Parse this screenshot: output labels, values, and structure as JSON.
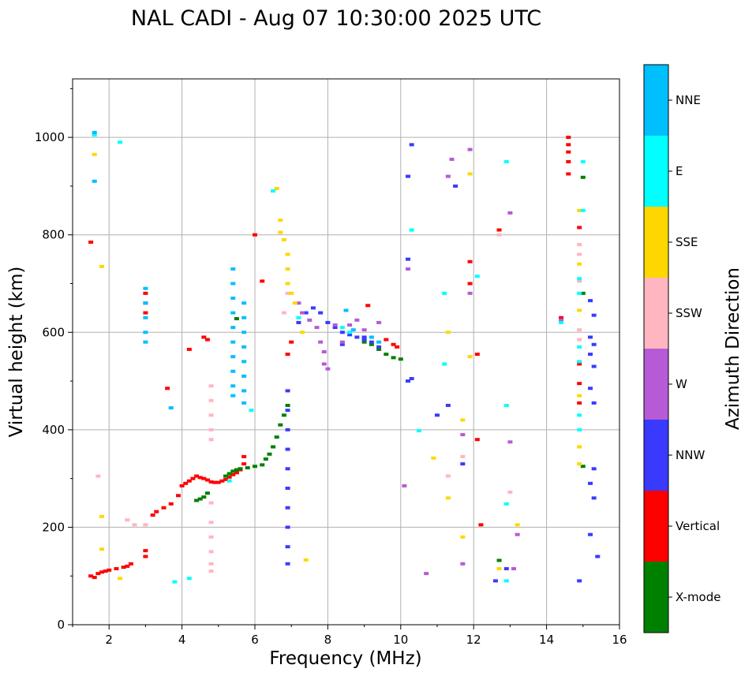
{
  "chart_data": {
    "type": "scatter",
    "title": "NAL CADI - Aug 07 10:30:00 2025 UTC",
    "xlabel": "Frequency (MHz)",
    "ylabel": "Virtual height (km)",
    "xlim": [
      1,
      16
    ],
    "ylim": [
      0,
      1120
    ],
    "xticks": [
      2,
      4,
      6,
      8,
      10,
      12,
      14,
      16
    ],
    "yticks": [
      0,
      200,
      400,
      600,
      800,
      1000
    ],
    "grid": true,
    "colorbar": {
      "label": "Azimuth Direction",
      "categories": [
        {
          "name": "X-mode",
          "color": "#008000"
        },
        {
          "name": "Vertical",
          "color": "#ff0000"
        },
        {
          "name": "NNW",
          "color": "#3a3aff"
        },
        {
          "name": "W",
          "color": "#b65ad6"
        },
        {
          "name": "SSW",
          "color": "#ffb6c1"
        },
        {
          "name": "SSE",
          "color": "#ffd700"
        },
        {
          "name": "E",
          "color": "#00ffff"
        },
        {
          "name": "NNE",
          "color": "#00bfff"
        }
      ]
    },
    "series": [
      {
        "name": "Vertical",
        "points": [
          [
            1.5,
            100
          ],
          [
            1.6,
            97
          ],
          [
            1.7,
            105
          ],
          [
            1.8,
            108
          ],
          [
            1.9,
            110
          ],
          [
            2.0,
            112
          ],
          [
            2.2,
            115
          ],
          [
            2.4,
            118
          ],
          [
            2.5,
            120
          ],
          [
            2.6,
            125
          ],
          [
            3.0,
            140
          ],
          [
            3.0,
            152
          ],
          [
            3.2,
            225
          ],
          [
            3.3,
            232
          ],
          [
            3.5,
            240
          ],
          [
            3.7,
            248
          ],
          [
            3.9,
            265
          ],
          [
            4.0,
            285
          ],
          [
            4.1,
            290
          ],
          [
            4.2,
            295
          ],
          [
            4.3,
            300
          ],
          [
            4.4,
            305
          ],
          [
            4.5,
            302
          ],
          [
            4.6,
            300
          ],
          [
            4.7,
            297
          ],
          [
            4.8,
            293
          ],
          [
            4.9,
            292
          ],
          [
            5.0,
            292
          ],
          [
            5.1,
            295
          ],
          [
            5.2,
            298
          ],
          [
            5.3,
            303
          ],
          [
            5.4,
            308
          ],
          [
            5.5,
            312
          ],
          [
            5.6,
            318
          ],
          [
            5.7,
            330
          ],
          [
            5.7,
            345
          ],
          [
            1.5,
            785
          ],
          [
            3.0,
            640
          ],
          [
            3.0,
            660
          ],
          [
            3.0,
            680
          ],
          [
            3.6,
            485
          ],
          [
            4.6,
            590
          ],
          [
            4.7,
            585
          ],
          [
            4.2,
            565
          ],
          [
            6.0,
            800
          ],
          [
            6.2,
            705
          ],
          [
            6.9,
            555
          ],
          [
            7.0,
            580
          ],
          [
            9.1,
            655
          ],
          [
            9.6,
            585
          ],
          [
            9.8,
            575
          ],
          [
            9.9,
            570
          ],
          [
            11.9,
            745
          ],
          [
            11.9,
            700
          ],
          [
            12.1,
            555
          ],
          [
            12.1,
            380
          ],
          [
            12.2,
            205
          ],
          [
            12.7,
            810
          ],
          [
            14.4,
            630
          ],
          [
            14.6,
            1000
          ],
          [
            14.6,
            985
          ],
          [
            14.6,
            970
          ],
          [
            14.6,
            950
          ],
          [
            14.6,
            925
          ],
          [
            14.9,
            815
          ],
          [
            14.9,
            535
          ],
          [
            14.9,
            495
          ],
          [
            14.9,
            455
          ]
        ]
      },
      {
        "name": "X-mode",
        "points": [
          [
            4.4,
            255
          ],
          [
            4.5,
            258
          ],
          [
            4.6,
            262
          ],
          [
            4.7,
            270
          ],
          [
            5.2,
            305
          ],
          [
            5.3,
            310
          ],
          [
            5.4,
            315
          ],
          [
            5.5,
            318
          ],
          [
            5.6,
            320
          ],
          [
            5.8,
            322
          ],
          [
            6.0,
            325
          ],
          [
            6.2,
            328
          ],
          [
            6.3,
            340
          ],
          [
            6.4,
            350
          ],
          [
            6.5,
            365
          ],
          [
            6.6,
            385
          ],
          [
            6.7,
            410
          ],
          [
            6.8,
            430
          ],
          [
            6.9,
            450
          ],
          [
            5.5,
            628
          ],
          [
            9.0,
            580
          ],
          [
            9.2,
            575
          ],
          [
            9.4,
            565
          ],
          [
            9.6,
            555
          ],
          [
            9.8,
            548
          ],
          [
            10.0,
            545
          ],
          [
            12.7,
            132
          ],
          [
            15.0,
            918
          ],
          [
            15.0,
            680
          ],
          [
            15.0,
            325
          ]
        ]
      },
      {
        "name": "NNW",
        "points": [
          [
            6.9,
            125
          ],
          [
            6.9,
            160
          ],
          [
            6.9,
            200
          ],
          [
            6.9,
            240
          ],
          [
            6.9,
            280
          ],
          [
            6.9,
            320
          ],
          [
            6.9,
            360
          ],
          [
            6.9,
            400
          ],
          [
            6.9,
            440
          ],
          [
            6.9,
            480
          ],
          [
            7.2,
            620
          ],
          [
            7.4,
            640
          ],
          [
            7.6,
            650
          ],
          [
            7.8,
            640
          ],
          [
            8.0,
            620
          ],
          [
            8.2,
            610
          ],
          [
            8.4,
            600
          ],
          [
            8.6,
            595
          ],
          [
            8.8,
            590
          ],
          [
            9.0,
            585
          ],
          [
            9.2,
            580
          ],
          [
            9.4,
            570
          ],
          [
            10.2,
            500
          ],
          [
            10.3,
            985
          ],
          [
            10.2,
            920
          ],
          [
            10.2,
            750
          ],
          [
            11.0,
            430
          ],
          [
            11.3,
            450
          ],
          [
            11.5,
            900
          ],
          [
            11.7,
            330
          ],
          [
            12.6,
            90
          ],
          [
            12.9,
            115
          ],
          [
            14.9,
            90
          ],
          [
            15.2,
            665
          ],
          [
            15.3,
            635
          ],
          [
            15.2,
            590
          ],
          [
            15.3,
            575
          ],
          [
            15.2,
            555
          ],
          [
            15.3,
            530
          ],
          [
            15.2,
            485
          ],
          [
            15.3,
            455
          ],
          [
            15.3,
            320
          ],
          [
            15.2,
            290
          ],
          [
            15.3,
            260
          ],
          [
            15.2,
            185
          ],
          [
            15.4,
            140
          ],
          [
            10.3,
            505
          ],
          [
            8.4,
            575
          ],
          [
            9.0,
            590
          ]
        ]
      },
      {
        "name": "W",
        "points": [
          [
            7.2,
            660
          ],
          [
            7.3,
            640
          ],
          [
            7.5,
            625
          ],
          [
            7.7,
            610
          ],
          [
            7.8,
            580
          ],
          [
            7.9,
            560
          ],
          [
            7.9,
            535
          ],
          [
            8.0,
            525
          ],
          [
            8.2,
            615
          ],
          [
            8.4,
            580
          ],
          [
            8.6,
            615
          ],
          [
            8.8,
            625
          ],
          [
            9.0,
            605
          ],
          [
            9.4,
            620
          ],
          [
            10.1,
            285
          ],
          [
            10.2,
            730
          ],
          [
            10.7,
            105
          ],
          [
            11.3,
            920
          ],
          [
            11.4,
            955
          ],
          [
            11.7,
            390
          ],
          [
            11.7,
            125
          ],
          [
            11.9,
            680
          ],
          [
            11.9,
            975
          ],
          [
            13.0,
            845
          ],
          [
            13.0,
            375
          ],
          [
            13.2,
            185
          ],
          [
            13.1,
            115
          ],
          [
            14.4,
            625
          ]
        ]
      },
      {
        "name": "SSW",
        "points": [
          [
            1.7,
            305
          ],
          [
            2.5,
            215
          ],
          [
            2.7,
            205
          ],
          [
            3.0,
            205
          ],
          [
            4.8,
            490
          ],
          [
            4.8,
            460
          ],
          [
            4.8,
            430
          ],
          [
            4.8,
            400
          ],
          [
            4.8,
            380
          ],
          [
            4.8,
            250
          ],
          [
            4.8,
            210
          ],
          [
            4.8,
            180
          ],
          [
            4.8,
            150
          ],
          [
            4.8,
            125
          ],
          [
            4.8,
            110
          ],
          [
            6.8,
            640
          ],
          [
            6.9,
            680
          ],
          [
            11.3,
            305
          ],
          [
            12.7,
            800
          ],
          [
            13.0,
            272
          ],
          [
            14.9,
            780
          ],
          [
            14.9,
            760
          ],
          [
            14.9,
            710
          ],
          [
            14.9,
            705
          ],
          [
            14.9,
            605
          ],
          [
            14.9,
            585
          ],
          [
            11.7,
            345
          ]
        ]
      },
      {
        "name": "SSE",
        "points": [
          [
            1.6,
            965
          ],
          [
            1.8,
            735
          ],
          [
            1.8,
            222
          ],
          [
            1.8,
            155
          ],
          [
            2.3,
            95
          ],
          [
            6.7,
            830
          ],
          [
            6.7,
            805
          ],
          [
            6.8,
            790
          ],
          [
            6.9,
            760
          ],
          [
            6.9,
            730
          ],
          [
            6.9,
            700
          ],
          [
            7.0,
            680
          ],
          [
            7.1,
            660
          ],
          [
            7.3,
            600
          ],
          [
            7.4,
            133
          ],
          [
            6.5,
            890
          ],
          [
            6.6,
            895
          ],
          [
            10.9,
            342
          ],
          [
            11.3,
            600
          ],
          [
            11.3,
            260
          ],
          [
            11.7,
            420
          ],
          [
            11.7,
            180
          ],
          [
            11.9,
            550
          ],
          [
            11.9,
            925
          ],
          [
            13.2,
            205
          ],
          [
            12.7,
            115
          ],
          [
            14.9,
            740
          ],
          [
            14.9,
            645
          ],
          [
            14.9,
            470
          ],
          [
            14.9,
            365
          ],
          [
            14.9,
            330
          ],
          [
            14.9,
            850
          ]
        ]
      },
      {
        "name": "E",
        "points": [
          [
            1.6,
            1005
          ],
          [
            2.3,
            990
          ],
          [
            3.8,
            88
          ],
          [
            4.2,
            95
          ],
          [
            5.3,
            295
          ],
          [
            5.9,
            440
          ],
          [
            6.5,
            890
          ],
          [
            7.2,
            630
          ],
          [
            8.4,
            610
          ],
          [
            8.6,
            600
          ],
          [
            10.3,
            810
          ],
          [
            10.5,
            398
          ],
          [
            11.2,
            535
          ],
          [
            11.2,
            680
          ],
          [
            12.1,
            715
          ],
          [
            12.9,
            950
          ],
          [
            12.9,
            450
          ],
          [
            12.9,
            248
          ],
          [
            12.9,
            90
          ],
          [
            14.4,
            620
          ],
          [
            14.9,
            710
          ],
          [
            14.9,
            680
          ],
          [
            14.9,
            570
          ],
          [
            14.9,
            540
          ],
          [
            14.9,
            430
          ],
          [
            14.9,
            400
          ],
          [
            15.0,
            950
          ],
          [
            15.0,
            850
          ]
        ]
      },
      {
        "name": "NNE",
        "points": [
          [
            1.6,
            1010
          ],
          [
            1.6,
            910
          ],
          [
            3.0,
            690
          ],
          [
            3.0,
            660
          ],
          [
            3.0,
            630
          ],
          [
            3.0,
            600
          ],
          [
            3.0,
            580
          ],
          [
            3.7,
            445
          ],
          [
            5.4,
            730
          ],
          [
            5.4,
            700
          ],
          [
            5.4,
            670
          ],
          [
            5.4,
            640
          ],
          [
            5.4,
            610
          ],
          [
            5.4,
            580
          ],
          [
            5.4,
            550
          ],
          [
            5.4,
            520
          ],
          [
            5.4,
            490
          ],
          [
            5.4,
            470
          ],
          [
            5.7,
            660
          ],
          [
            5.7,
            630
          ],
          [
            5.7,
            600
          ],
          [
            5.7,
            570
          ],
          [
            5.7,
            540
          ],
          [
            5.7,
            510
          ],
          [
            5.7,
            480
          ],
          [
            5.7,
            455
          ],
          [
            8.5,
            645
          ],
          [
            8.7,
            605
          ],
          [
            9.2,
            590
          ],
          [
            9.4,
            580
          ]
        ]
      }
    ]
  }
}
